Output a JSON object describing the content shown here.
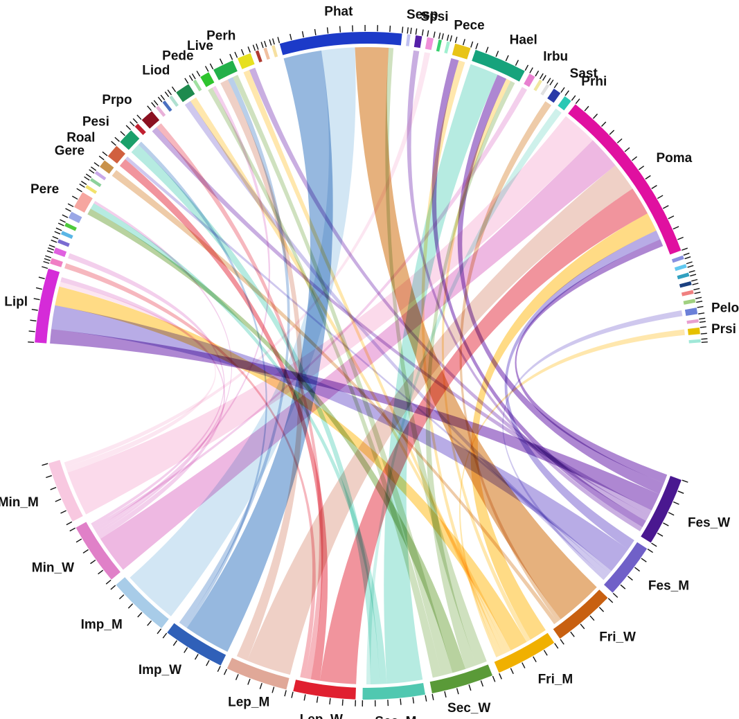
{
  "chart_data": {
    "type": "chord",
    "title": "",
    "top_sectors": [
      {
        "id": "lipl",
        "label": "Lipl",
        "color": "#d52bd8",
        "size": 14,
        "ticks": 7
      },
      {
        "id": "mini1",
        "label": "",
        "color": "#f07fc4",
        "size": 1.1,
        "ticks": 2
      },
      {
        "id": "mini2",
        "label": "",
        "color": "#e060e0",
        "size": 1.1,
        "ticks": 2
      },
      {
        "id": "sm_l1",
        "label": "",
        "color": "#7a6bd1",
        "size": 0.7,
        "ticks": 1
      },
      {
        "id": "sm_l2",
        "label": "",
        "color": "#5ab6e6",
        "size": 0.7,
        "ticks": 1
      },
      {
        "id": "sm_l3",
        "label": "",
        "color": "#4ec93c",
        "size": 0.7,
        "ticks": 1
      },
      {
        "id": "sm_l4",
        "label": "",
        "color": "#9aa7e6",
        "size": 1.3,
        "ticks": 1
      },
      {
        "id": "pere",
        "label": "Pere",
        "color": "#f6a6a0",
        "size": 3.2,
        "ticks": 2
      },
      {
        "id": "sm_p1",
        "label": "",
        "color": "#f2e26a",
        "size": 0.6,
        "ticks": 1
      },
      {
        "id": "sm_p2",
        "label": "",
        "color": "#8cd19b",
        "size": 0.6,
        "ticks": 1
      },
      {
        "id": "sm_p3",
        "label": "",
        "color": "#c8a8e8",
        "size": 0.6,
        "ticks": 1
      },
      {
        "id": "gere",
        "label": "Gere",
        "color": "#c9924a",
        "size": 1.5,
        "ticks": 1
      },
      {
        "id": "roal",
        "label": "Roal",
        "color": "#d1603f",
        "size": 2.5,
        "ticks": 1
      },
      {
        "id": "pesi",
        "label": "Pesi",
        "color": "#1aa06a",
        "size": 3,
        "ticks": 2
      },
      {
        "id": "sm_q1",
        "label": "",
        "color": "#c02030",
        "size": 0.8,
        "ticks": 1
      },
      {
        "id": "prpo",
        "label": "Prpo",
        "color": "#8b1020",
        "size": 2.5,
        "ticks": 1
      },
      {
        "id": "sm_r1",
        "label": "",
        "color": "#e8b0d8",
        "size": 0.6,
        "ticks": 1
      },
      {
        "id": "sm_r2",
        "label": "",
        "color": "#4a70c0",
        "size": 0.6,
        "ticks": 1
      },
      {
        "id": "sm_r3",
        "label": "",
        "color": "#b0e0d0",
        "size": 0.6,
        "ticks": 1
      },
      {
        "id": "liod",
        "label": "Liod",
        "color": "#1e8a4e",
        "size": 2.8,
        "ticks": 1
      },
      {
        "id": "sm_s1",
        "label": "",
        "color": "#a0e0a0",
        "size": 0.6,
        "ticks": 1
      },
      {
        "id": "pede",
        "label": "Pede",
        "color": "#2ec42e",
        "size": 1.8,
        "ticks": 1
      },
      {
        "id": "live",
        "label": "Live",
        "color": "#22b04a",
        "size": 4,
        "ticks": 2
      },
      {
        "id": "perh",
        "label": "Perh",
        "color": "#e6e020",
        "size": 2.6,
        "ticks": 2
      },
      {
        "id": "sm_t1",
        "label": "",
        "color": "#b03a30",
        "size": 0.6,
        "ticks": 1
      },
      {
        "id": "sm_t2",
        "label": "",
        "color": "#f0c0a0",
        "size": 0.6,
        "ticks": 1
      },
      {
        "id": "sm_t3",
        "label": "",
        "color": "#f6e0a0",
        "size": 0.6,
        "ticks": 1
      },
      {
        "id": "phat",
        "label": "Phat",
        "color": "#1c3ac8",
        "size": 23,
        "ticks": 10
      },
      {
        "id": "sm_u1",
        "label": "",
        "color": "#c0c0f0",
        "size": 0.6,
        "ticks": 1
      },
      {
        "id": "sesp",
        "label": "Sesp",
        "color": "#5520a8",
        "size": 1.2,
        "ticks": 1
      },
      {
        "id": "spsi",
        "label": "Spsi",
        "color": "#f090d8",
        "size": 1.2,
        "ticks": 1
      },
      {
        "id": "sm_v1",
        "label": "",
        "color": "#3ad070",
        "size": 0.6,
        "ticks": 1
      },
      {
        "id": "sm_v2",
        "label": "",
        "color": "#a0f0d0",
        "size": 0.6,
        "ticks": 1
      },
      {
        "id": "pece",
        "label": "Pece",
        "color": "#e8c418",
        "size": 3,
        "ticks": 2
      },
      {
        "id": "hael",
        "label": "Hael",
        "color": "#16a37c",
        "size": 10,
        "ticks": 5
      },
      {
        "id": "irbu",
        "label": "Irbu",
        "color": "#e880d0",
        "size": 1.2,
        "ticks": 1
      },
      {
        "id": "sm_w1",
        "label": "",
        "color": "#f0e6a0",
        "size": 0.6,
        "ticks": 1
      },
      {
        "id": "sm_w2",
        "label": "",
        "color": "#e0e0e0",
        "size": 0.6,
        "ticks": 1
      },
      {
        "id": "sast",
        "label": "Sast",
        "color": "#2a3aa8",
        "size": 1.5,
        "ticks": 1
      },
      {
        "id": "prhi",
        "label": "Prhi",
        "color": "#2ac8b4",
        "size": 1.5,
        "ticks": 1
      },
      {
        "id": "poma",
        "label": "Poma",
        "color": "#e010a0",
        "size": 34,
        "ticks": 16
      },
      {
        "id": "sm_x1",
        "label": "",
        "color": "#8890e0",
        "size": 0.7,
        "ticks": 1
      },
      {
        "id": "sm_x2",
        "label": "",
        "color": "#60c8f0",
        "size": 0.7,
        "ticks": 1
      },
      {
        "id": "sm_x3",
        "label": "",
        "color": "#30a0c0",
        "size": 0.7,
        "ticks": 1
      },
      {
        "id": "sm_x4",
        "label": "",
        "color": "#1a4080",
        "size": 0.7,
        "ticks": 1
      },
      {
        "id": "sm_x5",
        "label": "",
        "color": "#f08080",
        "size": 0.7,
        "ticks": 1
      },
      {
        "id": "sm_x6",
        "label": "",
        "color": "#a0d080",
        "size": 0.7,
        "ticks": 1
      },
      {
        "id": "pelo",
        "label": "Pelo",
        "color": "#6b80d8",
        "size": 1.2,
        "ticks": 1
      },
      {
        "id": "sm_y1",
        "label": "",
        "color": "#e8a0d0",
        "size": 0.6,
        "ticks": 1
      },
      {
        "id": "prsi",
        "label": "Prsi",
        "color": "#e6c000",
        "size": 1.2,
        "ticks": 1
      },
      {
        "id": "sm_y2",
        "label": "",
        "color": "#a0e8d8",
        "size": 0.6,
        "ticks": 1
      }
    ],
    "bottom_sectors": [
      {
        "id": "fes_w",
        "label": "Fes_W",
        "color": "#4a1890",
        "fill": "#9c6cc8",
        "size": 10,
        "ticks": 6
      },
      {
        "id": "fes_m",
        "label": "Fes_M",
        "color": "#7060c8",
        "fill": "#a89ae0",
        "size": 8,
        "ticks": 5
      },
      {
        "id": "fri_w",
        "label": "Fri_W",
        "color": "#c86010",
        "fill": "#e0a060",
        "size": 9,
        "ticks": 5
      },
      {
        "id": "fri_m",
        "label": "Fri_M",
        "color": "#f0b000",
        "fill": "#ffd36a",
        "size": 9,
        "ticks": 5
      },
      {
        "id": "sec_w",
        "label": "Sec_W",
        "color": "#5a9a38",
        "fill": "#a8c88a",
        "size": 9,
        "ticks": 5
      },
      {
        "id": "sec_m",
        "label": "Sec_M",
        "color": "#50c8b0",
        "fill": "#a6e6da",
        "size": 9,
        "ticks": 5
      },
      {
        "id": "lep_w",
        "label": "Lep_W",
        "color": "#e02030",
        "fill": "#ee7c88",
        "size": 9,
        "ticks": 5
      },
      {
        "id": "lep_m",
        "label": "Lep_M",
        "color": "#e0a898",
        "fill": "#ebc6ba",
        "size": 9,
        "ticks": 5
      },
      {
        "id": "imp_w",
        "label": "Imp_W",
        "color": "#3060b8",
        "fill": "#7fa8d8",
        "size": 9,
        "ticks": 5
      },
      {
        "id": "imp_m",
        "label": "Imp_M",
        "color": "#a8cce8",
        "fill": "#c8e0f2",
        "size": 9,
        "ticks": 5
      },
      {
        "id": "min_w",
        "label": "Min_W",
        "color": "#e080c8",
        "fill": "#eaa8dc",
        "size": 9,
        "ticks": 5
      },
      {
        "id": "min_m",
        "label": "Min_M",
        "color": "#f8c8e0",
        "fill": "#fad2e6",
        "size": 9,
        "ticks": 5
      }
    ],
    "links": [
      [
        "poma",
        "min_m",
        7.5
      ],
      [
        "poma",
        "min_w",
        7
      ],
      [
        "poma",
        "lep_m",
        6
      ],
      [
        "poma",
        "lep_w",
        6
      ],
      [
        "poma",
        "fri_m",
        4
      ],
      [
        "poma",
        "fes_m",
        2
      ],
      [
        "poma",
        "fes_w",
        1.5
      ],
      [
        "phat",
        "imp_w",
        8
      ],
      [
        "phat",
        "imp_m",
        7
      ],
      [
        "phat",
        "fri_w",
        7
      ],
      [
        "phat",
        "sec_w",
        1
      ],
      [
        "hael",
        "sec_m",
        6
      ],
      [
        "hael",
        "fes_w",
        2
      ],
      [
        "hael",
        "fri_m",
        1
      ],
      [
        "hael",
        "sec_w",
        1
      ],
      [
        "lipl",
        "fes_w",
        3
      ],
      [
        "lipl",
        "fes_m",
        5
      ],
      [
        "lipl",
        "fri_m",
        4
      ],
      [
        "lipl",
        "min_m",
        1
      ],
      [
        "lipl",
        "min_w",
        1
      ],
      [
        "pere",
        "sec_w",
        1.2
      ],
      [
        "pere",
        "sec_m",
        1.2
      ],
      [
        "pere",
        "min_w",
        0.5
      ],
      [
        "roal",
        "lep_w",
        1.5
      ],
      [
        "roal",
        "fes_m",
        0.6
      ],
      [
        "pesi",
        "sec_m",
        1.5
      ],
      [
        "pesi",
        "imp_w",
        0.6
      ],
      [
        "prpo",
        "fes_w",
        1
      ],
      [
        "prpo",
        "lep_w",
        1
      ],
      [
        "liod",
        "fes_m",
        1
      ],
      [
        "liod",
        "fri_m",
        1
      ],
      [
        "live",
        "lep_m",
        1.5
      ],
      [
        "live",
        "imp_w",
        1
      ],
      [
        "live",
        "sec_w",
        1
      ],
      [
        "perh",
        "fri_m",
        1
      ],
      [
        "perh",
        "fes_w",
        1
      ],
      [
        "pede",
        "sec_w",
        0.8
      ],
      [
        "pede",
        "min_w",
        0.6
      ],
      [
        "pece",
        "fes_w",
        1.2
      ],
      [
        "pece",
        "fri_m",
        1
      ],
      [
        "sesp",
        "fes_w",
        0.8
      ],
      [
        "spsi",
        "min_m",
        0.8
      ],
      [
        "irbu",
        "min_w",
        0.6
      ],
      [
        "sast",
        "fri_w",
        0.6
      ],
      [
        "prhi",
        "sec_m",
        0.7
      ],
      [
        "pelo",
        "fes_m",
        0.6
      ],
      [
        "prsi",
        "fri_m",
        0.6
      ],
      [
        "gere",
        "fri_w",
        0.6
      ],
      [
        "mini1",
        "lep_w",
        0.8
      ],
      [
        "mini2",
        "min_w",
        0.6
      ]
    ]
  }
}
